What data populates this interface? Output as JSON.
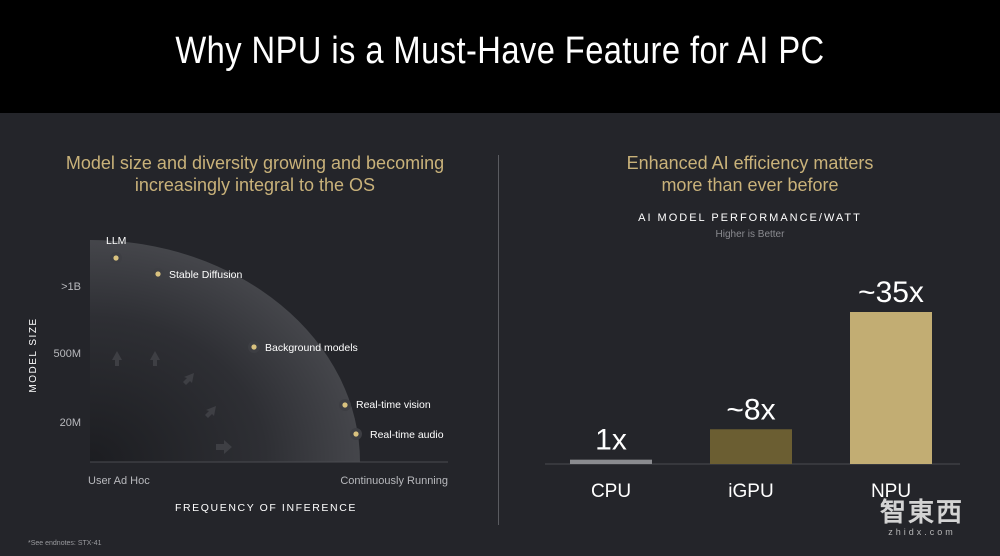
{
  "header": {
    "title": "Why NPU is a Must-Have Feature for AI PC"
  },
  "left_panel": {
    "heading_line1": "Model size and diversity growing and becoming",
    "heading_line2": "increasingly integral to the OS",
    "y_axis_label": "MODEL SIZE",
    "y_ticks": [
      ">1B",
      "500M",
      "20M"
    ],
    "x_axis_label": "FREQUENCY OF INFERENCE",
    "x_ticks": [
      "User Ad Hoc",
      "Continuously Running"
    ],
    "points": [
      "LLM",
      "Stable Diffusion",
      "Background models",
      "Real-time vision",
      "Real-time audio"
    ],
    "colors": {
      "dot": "#d9c27f",
      "gold": "#c9b27a"
    }
  },
  "right_panel": {
    "heading_line1": "Enhanced AI efficiency matters",
    "heading_line2": "more than ever before"
  },
  "chart_data": {
    "type": "bar",
    "title": "AI MODEL PERFORMANCE/WATT",
    "subtitle": "Higher is Better",
    "categories": [
      "CPU",
      "iGPU",
      "NPU"
    ],
    "values": [
      1,
      8,
      35
    ],
    "data_labels": [
      "1x",
      "~8x",
      "~35x"
    ],
    "colors": [
      "#8a8b8f",
      "#6b5e32",
      "#c2ad73"
    ],
    "ylim": [
      0,
      35
    ],
    "grid": false,
    "legend": "none"
  },
  "footnote": "*See endnotes: STX-41",
  "watermark": {
    "logo": "智東西",
    "sub": "zhidx.com"
  }
}
